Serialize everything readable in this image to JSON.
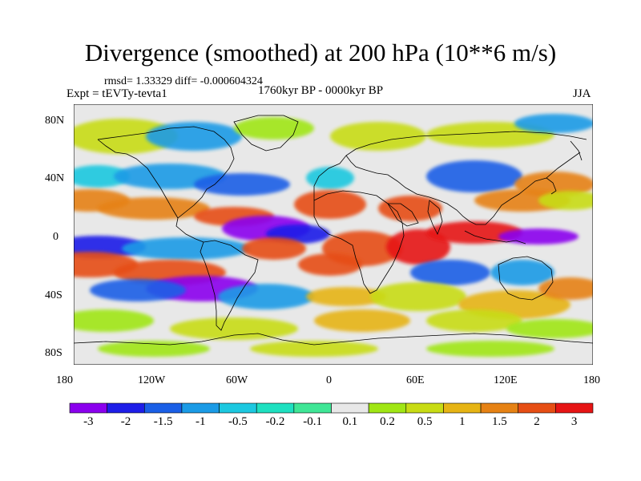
{
  "title": "Divergence (smoothed) at 200 hPa (10**6 m/s)",
  "stats_line": "rmsd= 1.33329 diff= -0.000604324",
  "experiment": "Expt = tEVTy-tevta1",
  "period": "1760kyr BP - 0000kyr BP",
  "season": "JJA",
  "y_axis_labels": [
    "80N",
    "40N",
    "0",
    "40S",
    "80S"
  ],
  "x_axis_labels": [
    "180",
    "120W",
    "60W",
    "0",
    "60E",
    "120E",
    "180"
  ],
  "colorbar": {
    "labels": [
      "-3",
      "-2",
      "-1.5",
      "-1",
      "-0.5",
      "-0.2",
      "-0.1",
      "0.1",
      "0.2",
      "0.5",
      "1",
      "1.5",
      "2",
      "3"
    ],
    "colors": [
      "#8b00ee",
      "#1e1ee8",
      "#1a5fe6",
      "#1b9be6",
      "#1cc8e0",
      "#1ee0c0",
      "#3fe696",
      "#e8e8e8",
      "#a0e614",
      "#c8dc14",
      "#e6b414",
      "#e68214",
      "#e64e14",
      "#e61414"
    ]
  },
  "map_fill_color": "#e8e8e8"
}
